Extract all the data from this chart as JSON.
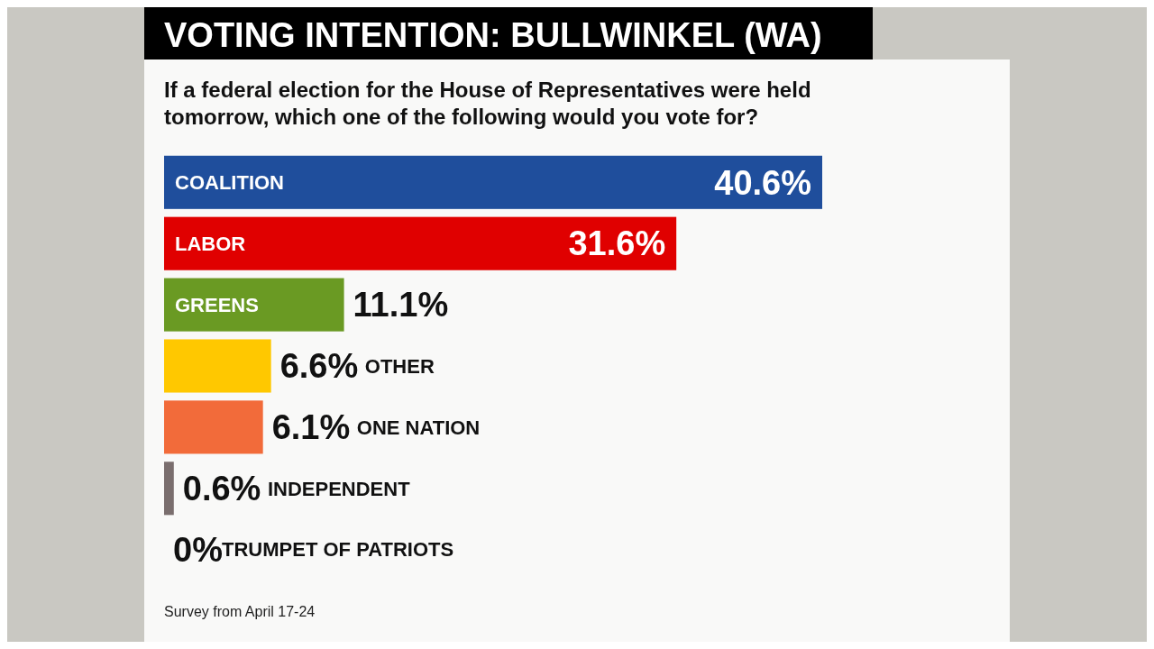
{
  "chart_data": {
    "type": "bar",
    "orientation": "horizontal",
    "title": "VOTING INTENTION: BULLWINKEL (WA)",
    "subtitle": "If a federal election for the House of Representatives were held tomorrow, which one of the following would you vote for?",
    "categories": [
      "COALITION",
      "LABOR",
      "GREENS",
      "OTHER",
      "ONE NATION",
      "INDEPENDENT",
      "TRUMPET OF PATRIOTS"
    ],
    "values": [
      40.6,
      31.6,
      11.1,
      6.6,
      6.1,
      0.6,
      0
    ],
    "colors": [
      "#1f4e9c",
      "#e00000",
      "#6a9a23",
      "#ffc800",
      "#f26b3a",
      "#7a6e6e",
      "#7a6e6e"
    ],
    "value_labels": [
      "40.6%",
      "31.6%",
      "11.1%",
      "6.6%",
      "6.1%",
      "0.6%",
      "0%"
    ],
    "annotations": [
      "Survey from April 17-24"
    ]
  }
}
